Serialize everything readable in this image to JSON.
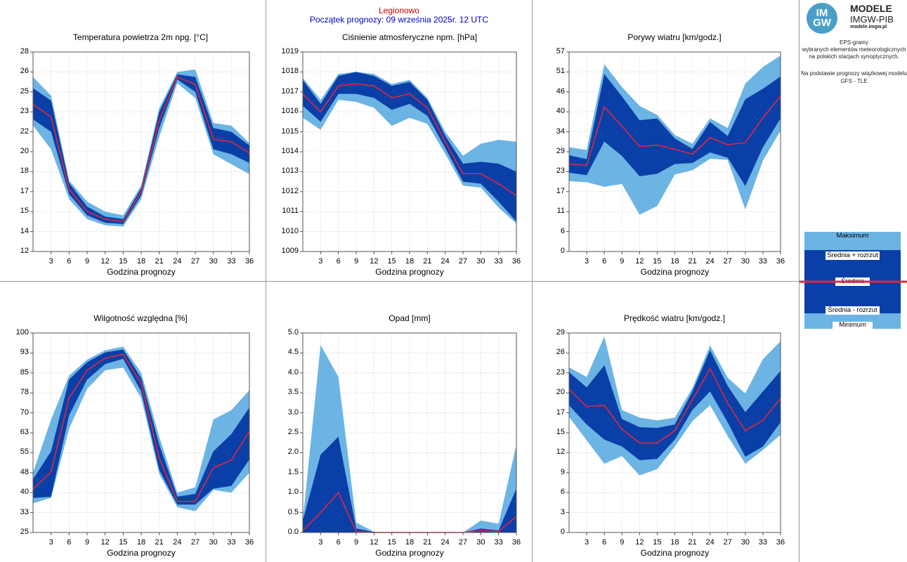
{
  "header": {
    "station": "Legionowo",
    "forecast_start": "Początek prognozy: 09 września 2025r. 12 UTC"
  },
  "logo": {
    "mark_top": "IM",
    "mark_bottom": "GW",
    "line1": "MODELE",
    "line2": "IMGW-PIB",
    "line3": "modele.imgw.pl"
  },
  "side_notes": {
    "line1": "EPS-gramy",
    "line2": "wybranych elementów meteorologicznych",
    "line3": "na polskich stacjach  synoptycznych.",
    "line4": "Na podstawie prognozy wiązkowej modelu",
    "line5": "GFS - TLE"
  },
  "legend": {
    "max": "Maksimum",
    "mean_plus": "Średnia + rozrzut",
    "mean": "Średnia",
    "mean_minus": "Średnia - rozrzut",
    "min": "Minimum"
  },
  "colors": {
    "spread_outer": "#6cb4e4",
    "spread_inner": "#0a3fa8",
    "mean_line": "#e0283c",
    "station_text": "#d00000",
    "start_text": "#0000c8"
  },
  "chart_data": [
    {
      "id": "temperature",
      "type": "area",
      "title": "Temperatura powietrza 2m npg. [°C]",
      "xlabel": "Godzina prognozy",
      "x": [
        0,
        3,
        6,
        9,
        12,
        15,
        18,
        21,
        24,
        27,
        30,
        33,
        36
      ],
      "xticks": [
        "3",
        "6",
        "9",
        "12",
        "15",
        "18",
        "21",
        "24",
        "27",
        "30",
        "33",
        "36"
      ],
      "ylim": [
        12,
        28
      ],
      "yticks": [
        "12",
        "14",
        "15",
        "17",
        "18",
        "20",
        "22",
        "23",
        "25",
        "26",
        "28"
      ],
      "series": [
        {
          "name": "Maksimum",
          "values": [
            26.0,
            24.5,
            17.7,
            16.0,
            15.2,
            14.9,
            17.3,
            23.5,
            26.4,
            26.6,
            22.3,
            22.1,
            20.7
          ]
        },
        {
          "name": "Średnia + rozrzut",
          "values": [
            25.1,
            24.1,
            17.5,
            15.6,
            14.8,
            14.6,
            17.1,
            23.2,
            26.2,
            26.0,
            21.9,
            21.6,
            20.5
          ]
        },
        {
          "name": "Średnia",
          "values": [
            23.8,
            22.8,
            17.0,
            15.2,
            14.6,
            14.4,
            16.8,
            22.5,
            26.0,
            25.4,
            21.0,
            20.8,
            19.9
          ]
        },
        {
          "name": "Średnia - rozrzut",
          "values": [
            22.6,
            21.6,
            16.6,
            14.9,
            14.3,
            14.2,
            16.5,
            21.9,
            25.8,
            24.8,
            20.2,
            19.8,
            19.1
          ]
        },
        {
          "name": "Minimum",
          "values": [
            22.1,
            20.2,
            16.2,
            14.6,
            14.1,
            14.0,
            16.2,
            21.2,
            25.5,
            24.3,
            19.8,
            19.0,
            18.2
          ]
        }
      ]
    },
    {
      "id": "pressure",
      "type": "area",
      "title": "Ciśnienie atmosferyczne npm. [hPa]",
      "xlabel": "Godzina prognozy",
      "x": [
        0,
        3,
        6,
        9,
        12,
        15,
        18,
        21,
        24,
        27,
        30,
        33,
        36
      ],
      "xticks": [
        "3",
        "6",
        "9",
        "12",
        "15",
        "18",
        "21",
        "24",
        "27",
        "30",
        "33",
        "36"
      ],
      "ylim": [
        1009,
        1019
      ],
      "yticks": [
        "1009",
        "1010",
        "1011",
        "1012",
        "1013",
        "1014",
        "1015",
        "1016",
        "1017",
        "1018",
        "1019"
      ],
      "series": [
        {
          "name": "Maksimum",
          "values": [
            1017.7,
            1016.6,
            1017.9,
            1018.0,
            1017.9,
            1017.4,
            1017.6,
            1016.7,
            1015.0,
            1013.8,
            1014.4,
            1014.6,
            1014.5
          ]
        },
        {
          "name": "Średnia + rozrzut",
          "values": [
            1017.6,
            1016.4,
            1017.8,
            1018.0,
            1017.8,
            1017.3,
            1017.5,
            1016.6,
            1014.8,
            1013.4,
            1013.5,
            1013.4,
            1013.0
          ]
        },
        {
          "name": "Średnia",
          "values": [
            1016.9,
            1016.0,
            1017.3,
            1017.4,
            1017.3,
            1016.7,
            1016.9,
            1016.2,
            1014.5,
            1012.9,
            1012.9,
            1012.4,
            1011.8
          ]
        },
        {
          "name": "Średnia - rozrzut",
          "values": [
            1016.3,
            1015.5,
            1016.9,
            1016.9,
            1016.7,
            1016.1,
            1016.4,
            1015.8,
            1014.2,
            1012.5,
            1012.4,
            1011.5,
            1010.5
          ]
        },
        {
          "name": "Minimum",
          "values": [
            1015.7,
            1015.1,
            1016.6,
            1016.5,
            1016.2,
            1015.3,
            1015.7,
            1015.4,
            1013.9,
            1012.3,
            1012.2,
            1011.2,
            1010.4
          ]
        }
      ]
    },
    {
      "id": "gusts",
      "type": "area",
      "title": "Porywy wiatru [km/godz.]",
      "xlabel": "Godzina prognozy",
      "x": [
        0,
        3,
        6,
        9,
        12,
        15,
        18,
        21,
        24,
        27,
        30,
        33,
        36
      ],
      "xticks": [
        "3",
        "6",
        "9",
        "12",
        "15",
        "18",
        "21",
        "24",
        "27",
        "30",
        "33",
        "36"
      ],
      "ylim": [
        0,
        57
      ],
      "yticks": [
        "0",
        "6",
        "11",
        "17",
        "23",
        "29",
        "34",
        "40",
        "46",
        "51",
        "57"
      ],
      "series": [
        {
          "name": "Maksimum",
          "values": [
            29.8,
            29.0,
            53.5,
            47.0,
            41.6,
            39.0,
            33.3,
            30.8,
            38.0,
            35.3,
            48.0,
            52.7,
            56.0
          ]
        },
        {
          "name": "Średnia + rozrzut",
          "values": [
            27.5,
            26.4,
            50.7,
            44.3,
            37.5,
            38.0,
            32.3,
            29.3,
            37.0,
            33.0,
            43.5,
            46.5,
            50.0
          ]
        },
        {
          "name": "Średnia",
          "values": [
            25.0,
            24.6,
            41.3,
            35.8,
            30.0,
            30.4,
            29.2,
            27.8,
            32.5,
            30.5,
            31.1,
            38.2,
            44.4
          ]
        },
        {
          "name": "Średnia - rozrzut",
          "values": [
            22.5,
            21.8,
            31.4,
            27.3,
            21.5,
            22.2,
            25.0,
            25.3,
            28.3,
            26.8,
            18.7,
            29.8,
            38.0
          ]
        },
        {
          "name": "Minimum",
          "values": [
            20.1,
            19.8,
            18.5,
            19.3,
            10.5,
            13.0,
            22.0,
            23.2,
            26.5,
            26.2,
            12.0,
            26.0,
            34.5
          ]
        }
      ]
    },
    {
      "id": "humidity",
      "type": "area",
      "title": "Wilgotność względna [%]",
      "xlabel": "Godzina prognozy",
      "x": [
        0,
        3,
        6,
        9,
        12,
        15,
        18,
        21,
        24,
        27,
        30,
        33,
        36
      ],
      "xticks": [
        "3",
        "6",
        "9",
        "12",
        "15",
        "18",
        "21",
        "24",
        "27",
        "30",
        "33",
        "36"
      ],
      "ylim": [
        25,
        100
      ],
      "yticks": [
        "25",
        "33",
        "40",
        "48",
        "55",
        "63",
        "70",
        "78",
        "85",
        "93",
        "100"
      ],
      "series": [
        {
          "name": "Maksimum",
          "values": [
            47.5,
            67.5,
            84.0,
            90.0,
            93.5,
            94.9,
            85.0,
            61.0,
            40.0,
            42.0,
            67.5,
            71.0,
            78.5
          ]
        },
        {
          "name": "Średnia + rozrzut",
          "values": [
            45.0,
            55.5,
            82.5,
            89.0,
            92.7,
            93.8,
            83.0,
            58.0,
            38.5,
            39.5,
            55.5,
            62.0,
            72.0
          ]
        },
        {
          "name": "Średnia",
          "values": [
            41.3,
            47.8,
            75.5,
            86.0,
            90.5,
            92.0,
            81.0,
            53.0,
            36.7,
            36.7,
            49.3,
            52.2,
            63.0
          ]
        },
        {
          "name": "Średnia - rozrzut",
          "values": [
            38.0,
            38.4,
            69.0,
            82.5,
            88.3,
            90.3,
            78.0,
            48.5,
            35.5,
            35.5,
            41.5,
            42.5,
            52.5
          ]
        },
        {
          "name": "Minimum",
          "values": [
            36.0,
            38.0,
            64.0,
            79.0,
            86.0,
            87.0,
            75.5,
            47.0,
            34.5,
            33.0,
            41.0,
            40.0,
            47.5
          ]
        }
      ]
    },
    {
      "id": "precipitation",
      "type": "area",
      "title": "Opad [mm]",
      "xlabel": "Godzina prognozy",
      "x": [
        0,
        3,
        6,
        9,
        12,
        15,
        18,
        21,
        24,
        27,
        30,
        33,
        36
      ],
      "xticks": [
        "3",
        "6",
        "9",
        "12",
        "15",
        "18",
        "21",
        "24",
        "27",
        "30",
        "33",
        "36"
      ],
      "ylim": [
        0,
        5
      ],
      "yticks": [
        "0.0",
        "0.5",
        "1.0",
        "1.5",
        "2.0",
        "2.5",
        "3.0",
        "3.5",
        "4.0",
        "4.5",
        "5.0"
      ],
      "series": [
        {
          "name": "Maksimum",
          "values": [
            0.3,
            4.7,
            3.9,
            0.25,
            0.02,
            0.0,
            0.0,
            0.0,
            0.0,
            0.0,
            0.3,
            0.22,
            2.2
          ]
        },
        {
          "name": "Średnia + rozrzut",
          "values": [
            0.3,
            1.95,
            2.4,
            0.1,
            0.01,
            0.0,
            0.0,
            0.0,
            0.0,
            0.0,
            0.1,
            0.05,
            1.1
          ]
        },
        {
          "name": "Średnia",
          "values": [
            0.05,
            0.5,
            1.0,
            0.02,
            0.0,
            0.0,
            0.0,
            0.0,
            0.0,
            0.0,
            0.05,
            0.02,
            0.4
          ]
        },
        {
          "name": "Średnia - rozrzut",
          "values": [
            0.0,
            0.0,
            0.0,
            0.0,
            0.0,
            0.0,
            0.0,
            0.0,
            0.0,
            0.0,
            0.0,
            0.0,
            0.0
          ]
        },
        {
          "name": "Minimum",
          "values": [
            0.0,
            0.0,
            0.0,
            0.0,
            0.0,
            0.0,
            0.0,
            0.0,
            0.0,
            0.0,
            0.0,
            0.0,
            0.0
          ]
        }
      ]
    },
    {
      "id": "wind",
      "type": "area",
      "title": "Prędkość wiatru [km/godz.]",
      "xlabel": "Godzina prognozy",
      "x": [
        0,
        3,
        6,
        9,
        12,
        15,
        18,
        21,
        24,
        27,
        30,
        33,
        36
      ],
      "xticks": [
        "3",
        "6",
        "9",
        "12",
        "15",
        "18",
        "21",
        "24",
        "27",
        "30",
        "33",
        "36"
      ],
      "ylim": [
        0,
        29
      ],
      "yticks": [
        "0",
        "3",
        "6",
        "9",
        "12",
        "15",
        "17",
        "20",
        "23",
        "26",
        "29"
      ],
      "series": [
        {
          "name": "Maksimum",
          "values": [
            24.0,
            22.6,
            28.5,
            17.8,
            16.7,
            16.3,
            16.7,
            21.0,
            27.2,
            22.5,
            20.2,
            25.2,
            27.8
          ]
        },
        {
          "name": "Średnia + rozrzut",
          "values": [
            23.3,
            21.1,
            24.3,
            16.5,
            15.3,
            15.2,
            15.7,
            20.5,
            26.5,
            21.3,
            17.5,
            20.5,
            23.5
          ]
        },
        {
          "name": "Średnia",
          "values": [
            20.8,
            18.3,
            18.5,
            15.0,
            13.0,
            13.0,
            14.8,
            19.3,
            23.8,
            18.8,
            14.8,
            16.3,
            19.5
          ]
        },
        {
          "name": "Średnia - rozrzut",
          "values": [
            18.5,
            15.7,
            13.5,
            12.5,
            10.5,
            10.7,
            13.5,
            17.8,
            20.5,
            16.0,
            11.0,
            12.5,
            16.0
          ]
        },
        {
          "name": "Minimum",
          "values": [
            16.8,
            13.4,
            10.0,
            11.1,
            8.3,
            9.2,
            12.5,
            16.2,
            18.5,
            14.0,
            10.0,
            12.0,
            14.2
          ]
        }
      ]
    }
  ]
}
